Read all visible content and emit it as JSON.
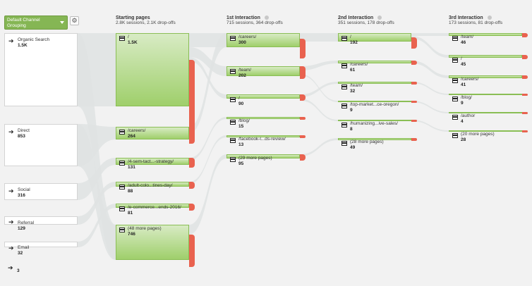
{
  "controls": {
    "dimension_label": "Default Channel Grouping",
    "gear_icon": "gear-icon",
    "caret_icon": "chevron-down-icon"
  },
  "colors": {
    "node_green": "#9fcf6b",
    "dropoff_red": "#e9624f",
    "flow_gray": "#dfe3e3",
    "button_green": "#85b654"
  },
  "columns": [
    {
      "title": "Starting pages",
      "sub": "2.8K sessions, 2.1K drop-offs"
    },
    {
      "title": "1st Interaction",
      "sub": "715 sessions, 364 drop-offs"
    },
    {
      "title": "2nd Interaction",
      "sub": "351 sessions, 178 drop-offs"
    },
    {
      "title": "3rd Interaction",
      "sub": "173 sessions, 81 drop-offs"
    }
  ],
  "sources": [
    {
      "label": "Organic Search",
      "value": "1.5K",
      "icon": "entrance-arrow-icon"
    },
    {
      "label": "Direct",
      "value": "853",
      "icon": "entrance-arrow-icon"
    },
    {
      "label": "Social",
      "value": "316",
      "icon": "entrance-arrow-icon"
    },
    {
      "label": "Referral",
      "value": "129",
      "icon": "entrance-arrow-icon"
    },
    {
      "label": "Email",
      "value": "32",
      "icon": "entrance-arrow-icon"
    },
    {
      "label": "",
      "value": "3",
      "icon": "entrance-arrow-icon"
    }
  ],
  "starting_pages": [
    {
      "label": "/",
      "value": "1.5K"
    },
    {
      "label": "/careers/",
      "value": "264"
    },
    {
      "label": "/4-sem-tact...-strategy/",
      "value": "131"
    },
    {
      "label": "/adult-colo...tines-day/",
      "value": "88"
    },
    {
      "label": "/e-commerce...ends-2016/",
      "value": "81"
    },
    {
      "label": "(48 more pages)",
      "value": "746"
    }
  ],
  "first_interaction": [
    {
      "label": "/careers/",
      "value": "300"
    },
    {
      "label": "/team/",
      "value": "202"
    },
    {
      "label": "/",
      "value": "90"
    },
    {
      "label": "/blog/",
      "value": "15"
    },
    {
      "label": "/facebook-l...ds-review/",
      "value": "13"
    },
    {
      "label": "(29 more pages)",
      "value": "95"
    }
  ],
  "second_interaction": [
    {
      "label": "/",
      "value": "192"
    },
    {
      "label": "/careers/",
      "value": "61"
    },
    {
      "label": "/team/",
      "value": "32"
    },
    {
      "label": "/top-market...ce-oregon/",
      "value": "9"
    },
    {
      "label": "/humanizing...ive-sales/",
      "value": "8"
    },
    {
      "label": "(28 more pages)",
      "value": "49"
    }
  ],
  "third_interaction": [
    {
      "label": "/team/",
      "value": "46"
    },
    {
      "label": "/",
      "value": "45"
    },
    {
      "label": "/careers/",
      "value": "41"
    },
    {
      "label": "/blog/",
      "value": "9"
    },
    {
      "label": "/author",
      "value": "4"
    },
    {
      "label": "(20 more pages)",
      "value": "28"
    }
  ]
}
